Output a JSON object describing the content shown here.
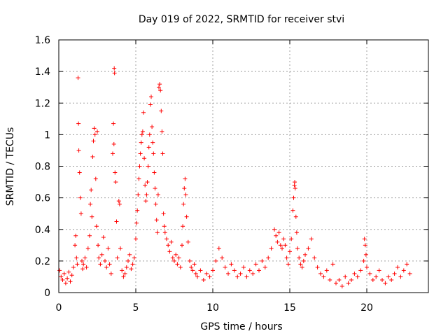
{
  "chart_data": {
    "type": "scatter",
    "title": "Day 019 of 2022, SRMTID for receiver stvi",
    "xlabel": "GPS time / hours",
    "ylabel": "SRMTID / TECUs",
    "xlim": [
      0,
      24
    ],
    "ylim": [
      0,
      1.6
    ],
    "x_ticks": [
      0,
      5,
      10,
      15,
      20
    ],
    "x_tick_labels": [
      "0",
      "5",
      "10",
      "15",
      "20"
    ],
    "y_ticks": [
      0,
      0.2,
      0.4,
      0.6,
      0.8,
      1.0,
      1.2,
      1.4,
      1.6
    ],
    "y_tick_labels": [
      "0",
      "0.2",
      "0.4",
      "0.6",
      "0.8",
      "1",
      "1.2",
      "1.4",
      "1.6"
    ],
    "grid": true,
    "marker": "+",
    "color": "#ff0000",
    "series": [
      {
        "name": "SRMTID",
        "points": [
          [
            0.05,
            0.14
          ],
          [
            0.15,
            0.1
          ],
          [
            0.25,
            0.08
          ],
          [
            0.35,
            0.12
          ],
          [
            0.45,
            0.06
          ],
          [
            0.55,
            0.09
          ],
          [
            0.65,
            0.13
          ],
          [
            0.75,
            0.07
          ],
          [
            0.85,
            0.11
          ],
          [
            0.95,
            0.16
          ],
          [
            1.05,
            0.3
          ],
          [
            1.1,
            0.36
          ],
          [
            1.15,
            0.22
          ],
          [
            1.2,
            0.18
          ],
          [
            1.25,
            1.36
          ],
          [
            1.28,
            1.07
          ],
          [
            1.3,
            0.9
          ],
          [
            1.35,
            0.76
          ],
          [
            1.4,
            0.6
          ],
          [
            1.45,
            0.5
          ],
          [
            1.5,
            0.2
          ],
          [
            1.55,
            0.15
          ],
          [
            1.6,
            0.18
          ],
          [
            1.7,
            0.22
          ],
          [
            1.8,
            0.16
          ],
          [
            1.9,
            0.28
          ],
          [
            2.0,
            0.36
          ],
          [
            2.05,
            0.56
          ],
          [
            2.1,
            0.65
          ],
          [
            2.15,
            0.48
          ],
          [
            2.2,
            0.86
          ],
          [
            2.25,
            0.96
          ],
          [
            2.3,
            1.04
          ],
          [
            2.35,
            1.0
          ],
          [
            2.4,
            0.72
          ],
          [
            2.45,
            0.42
          ],
          [
            2.5,
            1.02
          ],
          [
            2.55,
            0.3
          ],
          [
            2.6,
            0.22
          ],
          [
            2.7,
            0.18
          ],
          [
            2.8,
            0.24
          ],
          [
            2.9,
            0.35
          ],
          [
            3.0,
            0.2
          ],
          [
            3.1,
            0.16
          ],
          [
            3.2,
            0.28
          ],
          [
            3.3,
            0.18
          ],
          [
            3.4,
            0.12
          ],
          [
            3.5,
            0.88
          ],
          [
            3.55,
            1.07
          ],
          [
            3.58,
            0.94
          ],
          [
            3.6,
            1.42
          ],
          [
            3.62,
            1.39
          ],
          [
            3.65,
            0.76
          ],
          [
            3.7,
            0.7
          ],
          [
            3.75,
            0.45
          ],
          [
            3.8,
            0.22
          ],
          [
            3.9,
            0.58
          ],
          [
            3.95,
            0.56
          ],
          [
            4.0,
            0.28
          ],
          [
            4.1,
            0.14
          ],
          [
            4.2,
            0.1
          ],
          [
            4.3,
            0.12
          ],
          [
            4.4,
            0.16
          ],
          [
            4.5,
            0.2
          ],
          [
            4.6,
            0.24
          ],
          [
            4.7,
            0.15
          ],
          [
            4.8,
            0.18
          ],
          [
            4.9,
            0.22
          ],
          [
            5.0,
            0.34
          ],
          [
            5.05,
            0.44
          ],
          [
            5.1,
            0.52
          ],
          [
            5.15,
            0.62
          ],
          [
            5.2,
            0.72
          ],
          [
            5.25,
            0.8
          ],
          [
            5.3,
            0.88
          ],
          [
            5.35,
            0.95
          ],
          [
            5.4,
            1.0
          ],
          [
            5.45,
            1.02
          ],
          [
            5.5,
            1.14
          ],
          [
            5.55,
            0.85
          ],
          [
            5.6,
            0.68
          ],
          [
            5.65,
            0.58
          ],
          [
            5.7,
            0.62
          ],
          [
            5.75,
            0.7
          ],
          [
            5.8,
            0.8
          ],
          [
            5.85,
            0.92
          ],
          [
            5.9,
            1.0
          ],
          [
            5.95,
            1.19
          ],
          [
            6.0,
            1.24
          ],
          [
            6.05,
            1.05
          ],
          [
            6.1,
            0.95
          ],
          [
            6.15,
            0.88
          ],
          [
            6.2,
            0.76
          ],
          [
            6.25,
            0.66
          ],
          [
            6.3,
            0.56
          ],
          [
            6.35,
            0.46
          ],
          [
            6.4,
            0.38
          ],
          [
            6.45,
            0.62
          ],
          [
            6.5,
            1.3
          ],
          [
            6.55,
            1.32
          ],
          [
            6.6,
            1.28
          ],
          [
            6.65,
            1.15
          ],
          [
            6.7,
            1.02
          ],
          [
            6.75,
            0.88
          ],
          [
            6.8,
            0.5
          ],
          [
            6.85,
            0.42
          ],
          [
            6.9,
            0.38
          ],
          [
            7.0,
            0.34
          ],
          [
            7.1,
            0.3
          ],
          [
            7.2,
            0.26
          ],
          [
            7.3,
            0.32
          ],
          [
            7.4,
            0.22
          ],
          [
            7.5,
            0.2
          ],
          [
            7.6,
            0.24
          ],
          [
            7.7,
            0.18
          ],
          [
            7.8,
            0.22
          ],
          [
            7.9,
            0.16
          ],
          [
            8.0,
            0.3
          ],
          [
            8.05,
            0.42
          ],
          [
            8.1,
            0.56
          ],
          [
            8.15,
            0.66
          ],
          [
            8.2,
            0.72
          ],
          [
            8.25,
            0.62
          ],
          [
            8.3,
            0.48
          ],
          [
            8.4,
            0.32
          ],
          [
            8.5,
            0.2
          ],
          [
            8.6,
            0.16
          ],
          [
            8.7,
            0.14
          ],
          [
            8.8,
            0.18
          ],
          [
            8.9,
            0.12
          ],
          [
            9.0,
            0.1
          ],
          [
            9.2,
            0.14
          ],
          [
            9.4,
            0.08
          ],
          [
            9.6,
            0.12
          ],
          [
            9.8,
            0.1
          ],
          [
            10.0,
            0.14
          ],
          [
            10.2,
            0.2
          ],
          [
            10.4,
            0.28
          ],
          [
            10.6,
            0.22
          ],
          [
            10.8,
            0.16
          ],
          [
            11.0,
            0.12
          ],
          [
            11.2,
            0.18
          ],
          [
            11.4,
            0.14
          ],
          [
            11.6,
            0.1
          ],
          [
            11.8,
            0.12
          ],
          [
            12.0,
            0.16
          ],
          [
            12.2,
            0.1
          ],
          [
            12.4,
            0.14
          ],
          [
            12.6,
            0.12
          ],
          [
            12.8,
            0.18
          ],
          [
            13.0,
            0.14
          ],
          [
            13.2,
            0.2
          ],
          [
            13.4,
            0.16
          ],
          [
            13.6,
            0.22
          ],
          [
            13.8,
            0.28
          ],
          [
            14.0,
            0.4
          ],
          [
            14.1,
            0.36
          ],
          [
            14.2,
            0.32
          ],
          [
            14.3,
            0.38
          ],
          [
            14.4,
            0.3
          ],
          [
            14.5,
            0.28
          ],
          [
            14.6,
            0.34
          ],
          [
            14.7,
            0.3
          ],
          [
            14.8,
            0.22
          ],
          [
            14.9,
            0.18
          ],
          [
            15.0,
            0.26
          ],
          [
            15.1,
            0.34
          ],
          [
            15.2,
            0.52
          ],
          [
            15.25,
            0.6
          ],
          [
            15.3,
            0.68
          ],
          [
            15.32,
            0.7
          ],
          [
            15.35,
            0.66
          ],
          [
            15.4,
            0.48
          ],
          [
            15.45,
            0.38
          ],
          [
            15.5,
            0.28
          ],
          [
            15.6,
            0.22
          ],
          [
            15.7,
            0.18
          ],
          [
            15.8,
            0.16
          ],
          [
            15.9,
            0.2
          ],
          [
            16.0,
            0.24
          ],
          [
            16.2,
            0.28
          ],
          [
            16.4,
            0.34
          ],
          [
            16.6,
            0.22
          ],
          [
            16.8,
            0.16
          ],
          [
            17.0,
            0.12
          ],
          [
            17.2,
            0.1
          ],
          [
            17.4,
            0.14
          ],
          [
            17.6,
            0.08
          ],
          [
            17.8,
            0.18
          ],
          [
            18.0,
            0.06
          ],
          [
            18.2,
            0.08
          ],
          [
            18.4,
            0.04
          ],
          [
            18.6,
            0.1
          ],
          [
            18.8,
            0.06
          ],
          [
            19.0,
            0.08
          ],
          [
            19.2,
            0.12
          ],
          [
            19.4,
            0.1
          ],
          [
            19.6,
            0.14
          ],
          [
            19.8,
            0.2
          ],
          [
            19.85,
            0.34
          ],
          [
            19.9,
            0.3
          ],
          [
            19.95,
            0.24
          ],
          [
            20.0,
            0.16
          ],
          [
            20.2,
            0.12
          ],
          [
            20.4,
            0.08
          ],
          [
            20.6,
            0.1
          ],
          [
            20.8,
            0.14
          ],
          [
            21.0,
            0.08
          ],
          [
            21.2,
            0.06
          ],
          [
            21.4,
            0.1
          ],
          [
            21.6,
            0.08
          ],
          [
            21.8,
            0.12
          ],
          [
            22.0,
            0.16
          ],
          [
            22.2,
            0.1
          ],
          [
            22.4,
            0.14
          ],
          [
            22.6,
            0.18
          ],
          [
            22.8,
            0.12
          ]
        ]
      }
    ]
  }
}
